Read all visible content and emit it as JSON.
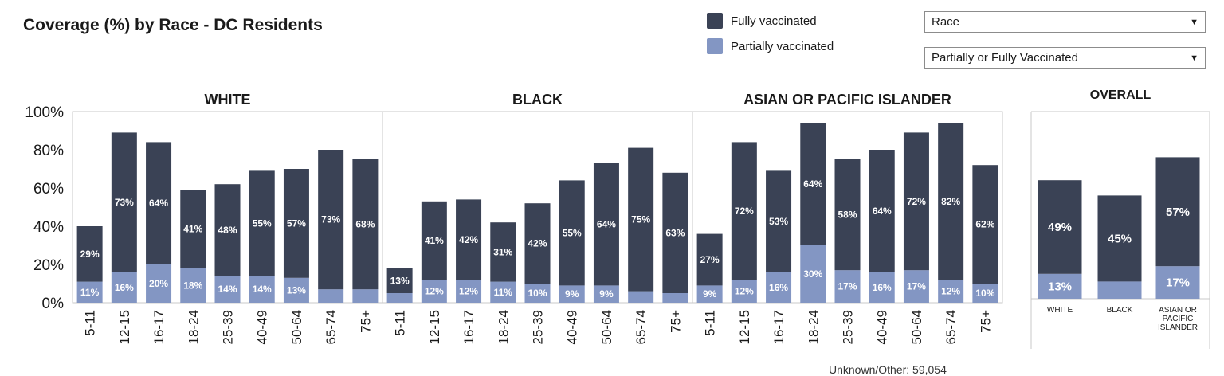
{
  "header": {
    "title": "Coverage (%) by Race - DC Residents"
  },
  "legend": [
    {
      "label": "Fully vaccinated",
      "color": "#3a4255"
    },
    {
      "label": "Partially vaccinated",
      "color": "#8396c3"
    }
  ],
  "filters": {
    "race": {
      "value": "Race",
      "icon": "chevron-down-icon"
    },
    "dose": {
      "value": "Partially or Fully Vaccinated",
      "icon": "chevron-down-icon"
    }
  },
  "footnote": "Unknown/Other: 59,054",
  "chart_data": [
    {
      "type": "bar",
      "stacked": true,
      "y_ticks": [
        "100%",
        "80%",
        "60%",
        "40%",
        "20%",
        "0%"
      ],
      "ylim": [
        0,
        100
      ],
      "panels": [
        {
          "title": "WHITE",
          "categories": [
            "5-11",
            "12-15",
            "16-17",
            "18-24",
            "25-39",
            "40-49",
            "50-64",
            "65-74",
            "75+"
          ],
          "series": [
            {
              "name": "Partially vaccinated",
              "values": [
                11,
                16,
                20,
                18,
                14,
                14,
                13,
                7,
                7
              ],
              "labels": [
                "11%",
                "16%",
                "20%",
                "18%",
                "14%",
                "14%",
                "13%",
                "",
                ""
              ]
            },
            {
              "name": "Fully vaccinated",
              "values": [
                29,
                73,
                64,
                41,
                48,
                55,
                57,
                73,
                68
              ],
              "labels": [
                "29%",
                "73%",
                "64%",
                "41%",
                "48%",
                "55%",
                "57%",
                "73%",
                "68%"
              ]
            }
          ]
        },
        {
          "title": "BLACK",
          "categories": [
            "5-11",
            "12-15",
            "16-17",
            "18-24",
            "25-39",
            "40-49",
            "50-64",
            "65-74",
            "75+"
          ],
          "series": [
            {
              "name": "Partially vaccinated",
              "values": [
                5,
                12,
                12,
                11,
                10,
                9,
                9,
                6,
                5
              ],
              "labels": [
                "",
                "12%",
                "12%",
                "11%",
                "10%",
                "9%",
                "9%",
                "",
                ""
              ]
            },
            {
              "name": "Fully vaccinated",
              "values": [
                13,
                41,
                42,
                31,
                42,
                55,
                64,
                75,
                63
              ],
              "labels": [
                "13%",
                "41%",
                "42%",
                "31%",
                "42%",
                "55%",
                "64%",
                "75%",
                "63%"
              ]
            }
          ]
        },
        {
          "title": "ASIAN OR PACIFIC ISLANDER",
          "categories": [
            "5-11",
            "12-15",
            "16-17",
            "18-24",
            "25-39",
            "40-49",
            "50-64",
            "65-74",
            "75+"
          ],
          "series": [
            {
              "name": "Partially vaccinated",
              "values": [
                9,
                12,
                16,
                30,
                17,
                16,
                17,
                12,
                10
              ],
              "labels": [
                "9%",
                "12%",
                "16%",
                "30%",
                "17%",
                "16%",
                "17%",
                "12%",
                "10%"
              ]
            },
            {
              "name": "Fully vaccinated",
              "values": [
                27,
                72,
                53,
                64,
                58,
                64,
                72,
                82,
                62
              ],
              "labels": [
                "27%",
                "72%",
                "53%",
                "64%",
                "58%",
                "64%",
                "72%",
                "82%",
                "62%"
              ]
            }
          ]
        }
      ]
    },
    {
      "type": "bar",
      "stacked": true,
      "title": "OVERALL",
      "ylim": [
        0,
        100
      ],
      "categories": [
        [
          "WHITE"
        ],
        [
          "BLACK"
        ],
        [
          "ASIAN OR",
          "PACIFIC",
          "ISLANDER"
        ]
      ],
      "series": [
        {
          "name": "Partially vaccinated",
          "values": [
            13,
            9,
            17
          ],
          "labels": [
            "13%",
            "",
            "17%"
          ]
        },
        {
          "name": "Fully vaccinated",
          "values": [
            49,
            45,
            57
          ],
          "labels": [
            "49%",
            "45%",
            "57%"
          ]
        }
      ]
    }
  ]
}
